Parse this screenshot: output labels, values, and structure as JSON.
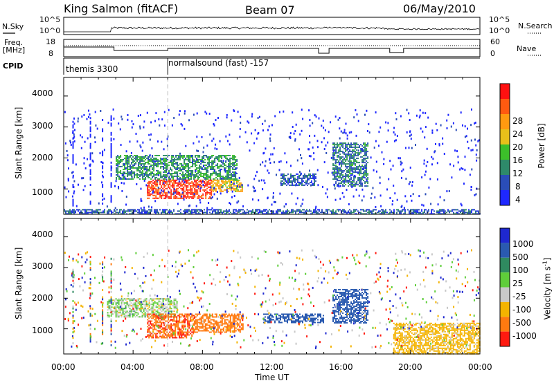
{
  "header": {
    "station": "King Salmon (fitACF)",
    "beam": "Beam 07",
    "date": "06/May/2010"
  },
  "nsky_panel": {
    "left_label": "N.Sky",
    "right_label": "N.Search",
    "tick_top": "10^5",
    "tick_bottom": "10^0"
  },
  "freq_panel": {
    "label_line1": "Freq.",
    "label_line2": "[MHz]",
    "right_label": "Nave",
    "left_ticks": [
      "18",
      "8"
    ],
    "right_ticks": [
      "60",
      "0"
    ]
  },
  "cpid_panel": {
    "label": "CPID",
    "modes": [
      {
        "name": "themis 3300",
        "start_hour": 0
      },
      {
        "name": "normalsound (fast) -157",
        "start_hour": 6
      }
    ]
  },
  "power_panel": {
    "ylabel": "Slant Range [km]",
    "yticks": [
      "1000",
      "2000",
      "3000",
      "4000"
    ],
    "colorbar_label": "Power [dB]",
    "colorbar_ticks": [
      "4",
      "8",
      "12",
      "16",
      "20",
      "24",
      "28"
    ],
    "colors": [
      "#1e28ff",
      "#2a4db8",
      "#2e8a6a",
      "#3cbf2a",
      "#e8c01a",
      "#ff9a10",
      "#ff5a10",
      "#ff1010"
    ]
  },
  "velocity_panel": {
    "ylabel": "Slant Range [km]",
    "yticks": [
      "1000",
      "2000",
      "3000",
      "4000"
    ],
    "colorbar_label": "Velocity [m s",
    "colorbar_label_sup": "-1",
    "colorbar_label_end": "]",
    "colorbar_ticks": [
      "1000",
      "500",
      "100",
      "25",
      "-25",
      "-100",
      "-500",
      "-1000"
    ],
    "colors": [
      "#1e28d0",
      "#2a5ab0",
      "#2f8a60",
      "#5fce3a",
      "#c8c8c8",
      "#f4b400",
      "#ff7a10",
      "#ff1a10"
    ]
  },
  "xaxis": {
    "label": "Time UT",
    "ticks": [
      "00:00",
      "04:00",
      "08:00",
      "12:00",
      "16:00",
      "20:00",
      "00:00"
    ]
  },
  "chart_data": [
    {
      "type": "heatmap",
      "title": "Power",
      "xlabel": "Time UT",
      "ylabel": "Slant Range [km]",
      "xlim": [
        0,
        24
      ],
      "ylim": [
        180,
        4600
      ],
      "zlabel": "Power [dB]",
      "zlim": [
        0,
        30
      ],
      "regions": [
        {
          "t0": 3.0,
          "t1": 10.0,
          "r0": 1300,
          "r1": 2100,
          "value": 10
        },
        {
          "t0": 4.8,
          "t1": 8.5,
          "r0": 700,
          "r1": 1300,
          "value": 26
        },
        {
          "t0": 8.5,
          "t1": 10.3,
          "r0": 900,
          "r1": 1300,
          "value": 18
        },
        {
          "t0": 12.5,
          "t1": 14.5,
          "r0": 1100,
          "r1": 1500,
          "value": 6
        },
        {
          "t0": 15.5,
          "t1": 17.5,
          "r0": 1100,
          "r1": 2500,
          "value": 8
        },
        {
          "t0": 0.0,
          "t1": 24.0,
          "r0": 180,
          "r1": 350,
          "value": 6
        }
      ]
    },
    {
      "type": "heatmap",
      "title": "Velocity",
      "xlabel": "Time UT",
      "ylabel": "Slant Range [km]",
      "xlim": [
        0,
        24
      ],
      "ylim": [
        180,
        4600
      ],
      "zlabel": "Velocity [m s-1]",
      "zlim": [
        -1000,
        1000
      ],
      "regions": [
        {
          "t0": 2.5,
          "t1": 6.5,
          "r0": 1400,
          "r1": 2000,
          "value": 0
        },
        {
          "t0": 4.8,
          "t1": 7.5,
          "r0": 700,
          "r1": 1500,
          "value": -450
        },
        {
          "t0": 7.5,
          "t1": 10.3,
          "r0": 900,
          "r1": 1500,
          "value": -350
        },
        {
          "t0": 11.5,
          "t1": 15.0,
          "r0": 1200,
          "r1": 1500,
          "value": 150
        },
        {
          "t0": 15.5,
          "t1": 17.5,
          "r0": 1200,
          "r1": 2300,
          "value": 300
        },
        {
          "t0": 19.0,
          "t1": 24.0,
          "r0": 180,
          "r1": 1200,
          "value": -50
        }
      ]
    }
  ]
}
